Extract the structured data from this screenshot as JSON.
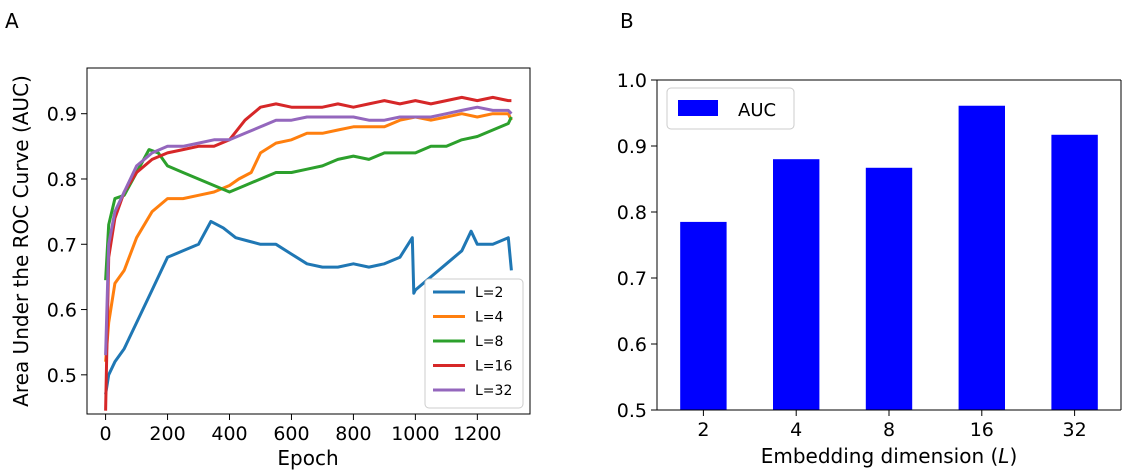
{
  "panels": {
    "a_label": "A",
    "b_label": "B"
  },
  "chart_data": [
    {
      "type": "line",
      "panel": "A",
      "xlabel": "Epoch",
      "ylabel": "Area Under the ROC Curve (AUC)",
      "xlim": [
        -60,
        1370
      ],
      "ylim": [
        0.44,
        0.97
      ],
      "xticks": [
        0,
        200,
        400,
        600,
        800,
        1000,
        1200
      ],
      "xtick_labels": [
        "0",
        "200",
        "400",
        "600",
        "800",
        "1000",
        "1200"
      ],
      "yticks": [
        0.5,
        0.6,
        0.7,
        0.8,
        0.9
      ],
      "ytick_labels": [
        "0.5",
        "0.6",
        "0.7",
        "0.8",
        "0.9"
      ],
      "grid": false,
      "legend_position": "lower-right",
      "series": [
        {
          "name": "L=2",
          "color": "#1f77b4",
          "x": [
            0,
            10,
            30,
            60,
            100,
            150,
            200,
            250,
            300,
            340,
            380,
            420,
            460,
            500,
            550,
            600,
            650,
            700,
            750,
            800,
            850,
            900,
            950,
            990,
            995,
            1000,
            1050,
            1100,
            1150,
            1180,
            1200,
            1250,
            1300,
            1310
          ],
          "y": [
            0.47,
            0.5,
            0.52,
            0.54,
            0.58,
            0.63,
            0.68,
            0.69,
            0.7,
            0.735,
            0.725,
            0.71,
            0.705,
            0.7,
            0.7,
            0.685,
            0.67,
            0.665,
            0.665,
            0.67,
            0.665,
            0.67,
            0.68,
            0.71,
            0.625,
            0.63,
            0.65,
            0.67,
            0.69,
            0.72,
            0.7,
            0.7,
            0.71,
            0.66
          ]
        },
        {
          "name": "L=4",
          "color": "#ff7f0e",
          "x": [
            0,
            10,
            30,
            60,
            100,
            150,
            200,
            250,
            300,
            350,
            400,
            430,
            470,
            500,
            550,
            600,
            650,
            700,
            750,
            800,
            850,
            900,
            950,
            1000,
            1050,
            1100,
            1150,
            1200,
            1250,
            1300,
            1310
          ],
          "y": [
            0.52,
            0.58,
            0.64,
            0.66,
            0.71,
            0.75,
            0.77,
            0.77,
            0.775,
            0.78,
            0.79,
            0.8,
            0.81,
            0.84,
            0.855,
            0.86,
            0.87,
            0.87,
            0.875,
            0.88,
            0.88,
            0.88,
            0.89,
            0.895,
            0.89,
            0.895,
            0.9,
            0.895,
            0.9,
            0.9,
            0.89
          ]
        },
        {
          "name": "L=8",
          "color": "#2ca02c",
          "x": [
            0,
            10,
            30,
            60,
            100,
            140,
            170,
            200,
            250,
            300,
            350,
            400,
            450,
            500,
            550,
            600,
            650,
            700,
            750,
            800,
            850,
            900,
            950,
            1000,
            1050,
            1100,
            1150,
            1200,
            1250,
            1300,
            1310
          ],
          "y": [
            0.645,
            0.73,
            0.77,
            0.775,
            0.81,
            0.845,
            0.84,
            0.82,
            0.81,
            0.8,
            0.79,
            0.78,
            0.79,
            0.8,
            0.81,
            0.81,
            0.815,
            0.82,
            0.83,
            0.835,
            0.83,
            0.84,
            0.84,
            0.84,
            0.85,
            0.85,
            0.86,
            0.865,
            0.875,
            0.885,
            0.895
          ]
        },
        {
          "name": "L=16",
          "color": "#d62728",
          "x": [
            0,
            10,
            30,
            60,
            100,
            150,
            200,
            250,
            300,
            350,
            400,
            450,
            500,
            550,
            600,
            650,
            700,
            750,
            800,
            850,
            900,
            950,
            1000,
            1050,
            1100,
            1150,
            1200,
            1250,
            1300,
            1310
          ],
          "y": [
            0.445,
            0.68,
            0.74,
            0.78,
            0.81,
            0.83,
            0.84,
            0.845,
            0.85,
            0.85,
            0.86,
            0.89,
            0.91,
            0.915,
            0.91,
            0.91,
            0.91,
            0.915,
            0.91,
            0.915,
            0.92,
            0.915,
            0.92,
            0.915,
            0.92,
            0.925,
            0.92,
            0.925,
            0.92,
            0.92
          ]
        },
        {
          "name": "L=32",
          "color": "#9467bd",
          "x": [
            0,
            10,
            30,
            60,
            100,
            150,
            200,
            250,
            300,
            350,
            400,
            450,
            500,
            550,
            600,
            650,
            700,
            750,
            800,
            850,
            900,
            950,
            1000,
            1050,
            1100,
            1150,
            1200,
            1250,
            1300,
            1310
          ],
          "y": [
            0.53,
            0.7,
            0.75,
            0.78,
            0.82,
            0.84,
            0.85,
            0.85,
            0.855,
            0.86,
            0.86,
            0.87,
            0.88,
            0.89,
            0.89,
            0.895,
            0.895,
            0.895,
            0.895,
            0.89,
            0.89,
            0.895,
            0.895,
            0.895,
            0.9,
            0.905,
            0.91,
            0.905,
            0.905,
            0.9
          ]
        }
      ]
    },
    {
      "type": "bar",
      "panel": "B",
      "xlabel": "Embedding dimension (L)",
      "xlabel_main": "Embedding dimension (",
      "xlabel_var": "L",
      "xlabel_end": ")",
      "ylabel": "",
      "categories": [
        "2",
        "4",
        "8",
        "16",
        "32"
      ],
      "series": [
        {
          "name": "AUC",
          "color": "#0000ff",
          "values": [
            0.785,
            0.88,
            0.867,
            0.961,
            0.917
          ]
        }
      ],
      "ylim": [
        0.5,
        1.0
      ],
      "yticks": [
        0.5,
        0.6,
        0.7,
        0.8,
        0.9,
        1.0
      ],
      "ytick_labels": [
        "0.5",
        "0.6",
        "0.7",
        "0.8",
        "0.9",
        "1.0"
      ],
      "grid": false,
      "legend_position": "top-left"
    }
  ]
}
